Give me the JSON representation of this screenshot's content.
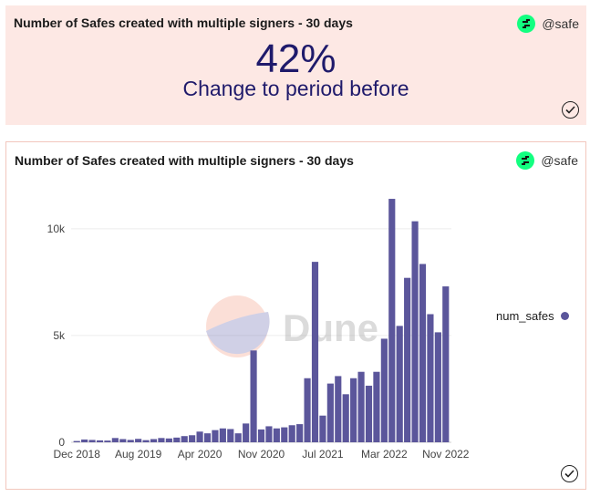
{
  "counter": {
    "title": "Number of Safes created with multiple signers - 30 days",
    "brand": "@safe",
    "value": "42%",
    "caption": "Change to period before"
  },
  "chart_card": {
    "title": "Number of Safes created with multiple signers - 30 days",
    "brand": "@safe",
    "watermark": "Dune"
  },
  "colors": {
    "bar": "#5b569b",
    "counter_bg": "#fde8e4",
    "counter_text": "#1f1a6b",
    "brand_green": "#12ff80"
  },
  "icons": [
    "safe-logo-icon",
    "check-circle-icon"
  ],
  "chart_data": {
    "type": "bar",
    "title": "",
    "xlabel": "",
    "ylabel": "",
    "ylim": [
      0,
      12000
    ],
    "yticks": [
      0,
      5000,
      10000
    ],
    "ytick_labels": [
      "0",
      "5k",
      "10k"
    ],
    "xtick_labels": [
      "Dec 2018",
      "Aug 2019",
      "Apr 2020",
      "Nov 2020",
      "Jul 2021",
      "Mar 2022",
      "Nov 2022"
    ],
    "xtick_index": [
      0,
      8,
      16,
      24,
      32,
      40,
      48
    ],
    "legend_position": "right",
    "series": [
      {
        "name": "num_safes",
        "color": "#5b569b",
        "values": [
          60,
          130,
          110,
          90,
          80,
          200,
          150,
          110,
          160,
          100,
          150,
          200,
          180,
          220,
          290,
          330,
          500,
          420,
          570,
          650,
          620,
          420,
          880,
          4300,
          600,
          750,
          650,
          700,
          800,
          850,
          3000,
          8450,
          1250,
          2750,
          3100,
          2250,
          3000,
          3300,
          2650,
          3300,
          4850,
          11400,
          5450,
          7700,
          10350,
          8350,
          6000,
          5150,
          7300
        ]
      }
    ]
  }
}
